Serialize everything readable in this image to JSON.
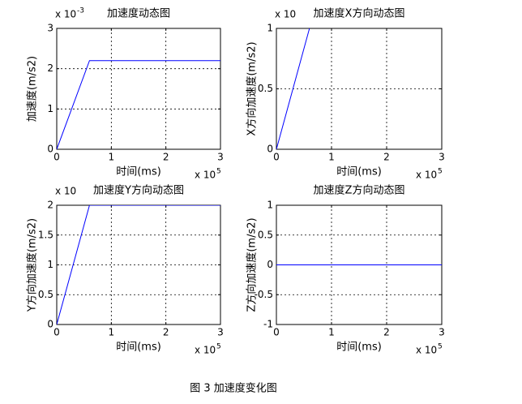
{
  "caption": "图 3 加速度变化图",
  "chart_data": [
    {
      "type": "line",
      "title": "加速度动态图",
      "xlabel": "时间(ms)",
      "ylabel": "加速度(m/s2)",
      "x_multiplier": {
        "base": "x 10",
        "exponent": "5"
      },
      "y_multiplier": {
        "base": "x 10",
        "exponent": "-3"
      },
      "x": [
        0,
        0.6,
        3
      ],
      "values": [
        0,
        2.2,
        2.2
      ],
      "color": "#0000ff",
      "xlim": [
        0,
        3
      ],
      "xticks": [
        0,
        1,
        2,
        3
      ],
      "ylim": [
        0,
        3
      ],
      "yticks": [
        0,
        1,
        2,
        3
      ],
      "grid": true
    },
    {
      "type": "line",
      "title": "加速度X方向动态图",
      "xlabel": "时间(ms)",
      "ylabel": "X方向加速度(m/s2)",
      "x_multiplier": {
        "base": "x 10",
        "exponent": "5"
      },
      "y_multiplier": {
        "base": "x 10"
      },
      "x": [
        0,
        0.6
      ],
      "values": [
        0,
        1
      ],
      "color": "#0000ff",
      "xlim": [
        0,
        3
      ],
      "xticks": [
        0,
        1,
        2,
        3
      ],
      "ylim": [
        0,
        1
      ],
      "yticks": [
        0,
        0.5,
        1
      ],
      "grid": true
    },
    {
      "type": "line",
      "title": "加速度Y方向动态图",
      "xlabel": "时间(ms)",
      "ylabel": "Y方向加速度(m/s2)",
      "x_multiplier": {
        "base": "x 10",
        "exponent": "5"
      },
      "y_multiplier": {
        "base": "x 10"
      },
      "x": [
        0,
        0.6,
        3
      ],
      "values": [
        0,
        2,
        2
      ],
      "color": "#0000ff",
      "xlim": [
        0,
        3
      ],
      "xticks": [
        0,
        1,
        2,
        3
      ],
      "ylim": [
        0,
        2
      ],
      "yticks": [
        0,
        0.5,
        1,
        1.5,
        2
      ],
      "grid": true
    },
    {
      "type": "line",
      "title": "加速度Z方向动态图",
      "xlabel": "时间(ms)",
      "ylabel": "Z方向加速度(m/s2)",
      "x_multiplier": {
        "base": "x 10",
        "exponent": "5"
      },
      "x": [
        0,
        3
      ],
      "values": [
        0,
        0
      ],
      "color": "#0000ff",
      "xlim": [
        0,
        3
      ],
      "xticks": [
        0,
        1,
        2,
        3
      ],
      "ylim": [
        -1,
        1
      ],
      "yticks": [
        -1,
        -0.5,
        0,
        0.5,
        1
      ],
      "grid": true
    }
  ]
}
